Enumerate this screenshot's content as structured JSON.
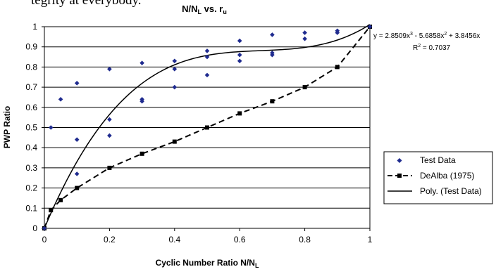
{
  "header_fragment": "  tegrity at everybody.",
  "chart_data": {
    "type": "scatter",
    "title": "N/N",
    "title_sub": "L",
    "title_tail": " vs. r",
    "title_tail_sub": "u",
    "xlabel": "Cyclic Number Ratio N/N",
    "xlabel_sub": "L",
    "ylabel": "PWP Ratio",
    "xlim": [
      0,
      1
    ],
    "ylim": [
      0,
      1
    ],
    "x_ticks": [
      0,
      0.2,
      0.4,
      0.6,
      0.8,
      1
    ],
    "y_ticks": [
      0,
      0.1,
      0.2,
      0.3,
      0.4,
      0.5,
      0.6,
      0.7,
      0.8,
      0.9,
      1
    ],
    "x_tick_labels": [
      "0",
      "0.2",
      "0.4",
      "0.6",
      "0.8",
      "1"
    ],
    "y_tick_labels": [
      "0",
      "0.1",
      "0.2",
      "0.3",
      "0.4",
      "0.5",
      "0.6",
      "0.7",
      "0.8",
      "0.9",
      "1"
    ],
    "grid": "horizontal",
    "legend_position": "right",
    "series": [
      {
        "name": "Test Data",
        "kind": "scatter",
        "marker": "diamond",
        "color": "#1f2b8f",
        "x": [
          0,
          0.02,
          0.05,
          0.1,
          0.1,
          0.1,
          0.2,
          0.2,
          0.2,
          0.3,
          0.3,
          0.3,
          0.4,
          0.4,
          0.4,
          0.5,
          0.5,
          0.5,
          0.6,
          0.6,
          0.6,
          0.7,
          0.7,
          0.7,
          0.8,
          0.8,
          0.9,
          0.9,
          1.0
        ],
        "y": [
          0.0,
          0.5,
          0.64,
          0.72,
          0.44,
          0.27,
          0.79,
          0.54,
          0.46,
          0.82,
          0.64,
          0.63,
          0.83,
          0.79,
          0.7,
          0.88,
          0.85,
          0.76,
          0.93,
          0.86,
          0.83,
          0.96,
          0.87,
          0.86,
          0.97,
          0.94,
          0.98,
          0.97,
          1.0
        ]
      },
      {
        "name": "DeAlba (1975)",
        "kind": "line",
        "dash": "dashed",
        "marker": "square",
        "color": "#000000",
        "x": [
          0,
          0.02,
          0.05,
          0.1,
          0.2,
          0.3,
          0.4,
          0.5,
          0.6,
          0.7,
          0.8,
          0.9,
          1.0
        ],
        "y": [
          0.0,
          0.09,
          0.14,
          0.2,
          0.3,
          0.37,
          0.43,
          0.5,
          0.57,
          0.63,
          0.7,
          0.8,
          1.0
        ]
      },
      {
        "name": "Poly. (Test Data)",
        "kind": "trendline",
        "color": "#000000",
        "coefficients": [
          2.8509,
          -5.6858,
          3.8456,
          0
        ]
      }
    ],
    "annotations": [
      {
        "text": "y = 2.8509x",
        "sup1": "3",
        "mid1": " - 5.6858x",
        "sup2": "2",
        "tail": " + 3.8456x"
      },
      {
        "text": "R",
        "sup1": "2",
        "tail": " = 0.7037"
      }
    ]
  }
}
